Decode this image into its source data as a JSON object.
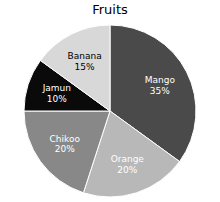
{
  "chart_data": {
    "type": "pie",
    "title": "Fruits",
    "categories": [
      "Mango",
      "Orange",
      "Chikoo",
      "Jamun",
      "Banana"
    ],
    "values": [
      35,
      20,
      20,
      10,
      15
    ],
    "value_labels": [
      "35%",
      "20%",
      "20%",
      "10%",
      "15%"
    ],
    "colors": [
      "#4a4a4a",
      "#b8b8b8",
      "#888888",
      "#0a0a0a",
      "#d8d8d8"
    ]
  }
}
